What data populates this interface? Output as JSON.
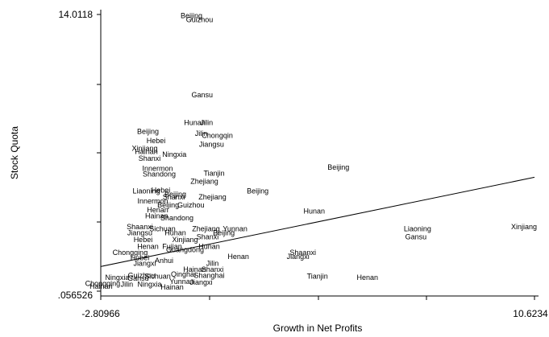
{
  "chart_data": {
    "type": "scatter",
    "title": "",
    "xlabel": "Growth in Net Profits",
    "ylabel": "Stock Quota",
    "xlim": [
      -2.80966,
      10.6234
    ],
    "ylim": [
      0.056526,
      14.0118
    ],
    "x_tick_labels": [
      "-2.80966",
      "10.6234"
    ],
    "y_tick_labels": [
      "14.0118",
      ".056526"
    ],
    "marker": "province name",
    "grid": false,
    "legend": "none",
    "fit_line": {
      "x": [
        -2.80966,
        10.6234
      ],
      "y": [
        1.3,
        5.8
      ]
    },
    "points": [
      {
        "label": "Beijing",
        "x": 0.0,
        "y": 13.95
      },
      {
        "label": "Guizhou",
        "x": 0.25,
        "y": 13.75
      },
      {
        "label": "Gansu",
        "x": 0.33,
        "y": 9.95
      },
      {
        "label": "Hunan",
        "x": 0.1,
        "y": 8.55
      },
      {
        "label": "Jilin",
        "x": 0.47,
        "y": 8.55
      },
      {
        "label": "Beijing",
        "x": -1.35,
        "y": 8.1
      },
      {
        "label": "Jilin",
        "x": 0.3,
        "y": 8.0
      },
      {
        "label": "Chongqin",
        "x": 0.8,
        "y": 7.9
      },
      {
        "label": "Hebei",
        "x": -1.1,
        "y": 7.65
      },
      {
        "label": "Jiangsu",
        "x": 0.62,
        "y": 7.45
      },
      {
        "label": "Xinjiang",
        "x": -1.45,
        "y": 7.25
      },
      {
        "label": "Hainan",
        "x": -1.4,
        "y": 7.1
      },
      {
        "label": "Ningxia",
        "x": -0.53,
        "y": 6.95
      },
      {
        "label": "Shanxi",
        "x": -1.3,
        "y": 6.75
      },
      {
        "label": "Beijing",
        "x": 4.55,
        "y": 6.3
      },
      {
        "label": "Innermon",
        "x": -1.05,
        "y": 6.25
      },
      {
        "label": "Tianjin",
        "x": 0.7,
        "y": 6.0
      },
      {
        "label": "Shandong",
        "x": -1.0,
        "y": 5.95
      },
      {
        "label": "Zhejiang",
        "x": 0.4,
        "y": 5.6
      },
      {
        "label": "Liaoning",
        "x": -1.4,
        "y": 5.1
      },
      {
        "label": "Beijing",
        "x": 2.05,
        "y": 5.1
      },
      {
        "label": "Hebei",
        "x": -0.95,
        "y": 5.15
      },
      {
        "label": "Beijing",
        "x": -0.5,
        "y": 4.95
      },
      {
        "label": "Zhejiang",
        "x": 0.65,
        "y": 4.8
      },
      {
        "label": "Shanxi",
        "x": -0.55,
        "y": 4.8
      },
      {
        "label": "Innermon",
        "x": -1.2,
        "y": 4.6
      },
      {
        "label": "Beijing",
        "x": -0.72,
        "y": 4.4
      },
      {
        "label": "Guizhou",
        "x": -0.02,
        "y": 4.4
      },
      {
        "label": "Henan",
        "x": -1.05,
        "y": 4.15
      },
      {
        "label": "Hunan",
        "x": 3.8,
        "y": 4.1
      },
      {
        "label": "Hainan",
        "x": -1.08,
        "y": 3.85
      },
      {
        "label": "Shandong",
        "x": -0.45,
        "y": 3.75
      },
      {
        "label": "Xinjiang",
        "x": 10.3,
        "y": 3.3
      },
      {
        "label": "Liaoning",
        "x": 7.0,
        "y": 3.2
      },
      {
        "label": "Zhejiang",
        "x": 0.45,
        "y": 3.2
      },
      {
        "label": "Yunnan",
        "x": 1.35,
        "y": 3.2
      },
      {
        "label": "Shaanxi",
        "x": -1.6,
        "y": 3.3
      },
      {
        "label": "Beijing",
        "x": 1.0,
        "y": 3.0
      },
      {
        "label": "Hunan",
        "x": -0.5,
        "y": 3.0
      },
      {
        "label": "Gansu",
        "x": 6.95,
        "y": 2.8
      },
      {
        "label": "Jiangsu",
        "x": -1.6,
        "y": 3.0
      },
      {
        "label": "Sichuan",
        "x": -0.9,
        "y": 3.2
      },
      {
        "label": "Shanxi",
        "x": 0.5,
        "y": 2.8
      },
      {
        "label": "Hebei",
        "x": -1.5,
        "y": 2.65
      },
      {
        "label": "Xinjiang",
        "x": -0.2,
        "y": 2.65
      },
      {
        "label": "Henan",
        "x": -1.35,
        "y": 2.3
      },
      {
        "label": "Hunan",
        "x": 0.55,
        "y": 2.3
      },
      {
        "label": "Fujian",
        "x": -0.6,
        "y": 2.3
      },
      {
        "label": "Guangdong",
        "x": -0.2,
        "y": 2.15
      },
      {
        "label": "Shaanxi",
        "x": 3.45,
        "y": 2.0
      },
      {
        "label": "Jiangxi",
        "x": 3.3,
        "y": 1.8
      },
      {
        "label": "Chongqing",
        "x": -1.9,
        "y": 2.0
      },
      {
        "label": "Henan",
        "x": 1.45,
        "y": 1.8
      },
      {
        "label": "Hubei",
        "x": -1.6,
        "y": 1.75
      },
      {
        "label": "Jilin",
        "x": 0.65,
        "y": 1.45
      },
      {
        "label": "Anhui",
        "x": -0.85,
        "y": 1.6
      },
      {
        "label": "Jiangxi",
        "x": -1.45,
        "y": 1.45
      },
      {
        "label": "Shanxi",
        "x": 0.65,
        "y": 1.15
      },
      {
        "label": "Hainan",
        "x": 0.1,
        "y": 1.15
      },
      {
        "label": "Tianjin",
        "x": 3.9,
        "y": 0.8
      },
      {
        "label": "Henan",
        "x": 5.45,
        "y": 0.75
      },
      {
        "label": "Ningxia",
        "x": -2.3,
        "y": 0.75
      },
      {
        "label": "Qinghai",
        "x": -0.25,
        "y": 0.9
      },
      {
        "label": "Shanghai",
        "x": 0.55,
        "y": 0.85
      },
      {
        "label": "Sichuan",
        "x": -1.05,
        "y": 0.8
      },
      {
        "label": "Guizhou",
        "x": -1.55,
        "y": 0.85
      },
      {
        "label": "Gansu",
        "x": -1.65,
        "y": 0.7
      },
      {
        "label": "Ningxia",
        "x": -1.3,
        "y": 0.4
      },
      {
        "label": "Jiangxi",
        "x": 0.3,
        "y": 0.5
      },
      {
        "label": "Chongqing",
        "x": -2.75,
        "y": 0.45
      },
      {
        "label": "Jilin",
        "x": -2.0,
        "y": 0.4
      },
      {
        "label": "Hainan",
        "x": -0.6,
        "y": 0.25
      },
      {
        "label": "Hainan",
        "x": -2.8,
        "y": 0.3
      },
      {
        "label": "Yunnan",
        "x": -0.3,
        "y": 0.55
      }
    ]
  }
}
